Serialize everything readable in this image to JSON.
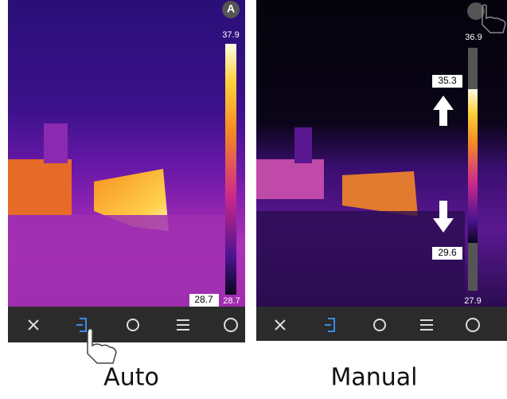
{
  "panels": [
    {
      "caption": "Auto",
      "mode_badge": "A",
      "scale_max": "37.9",
      "min_readout": "28.7",
      "scale_min": "28.7"
    },
    {
      "caption": "Manual",
      "scale_max": "36.9",
      "upper_limit": "35.3",
      "lower_limit": "29.6",
      "scale_min": "27.9"
    }
  ]
}
